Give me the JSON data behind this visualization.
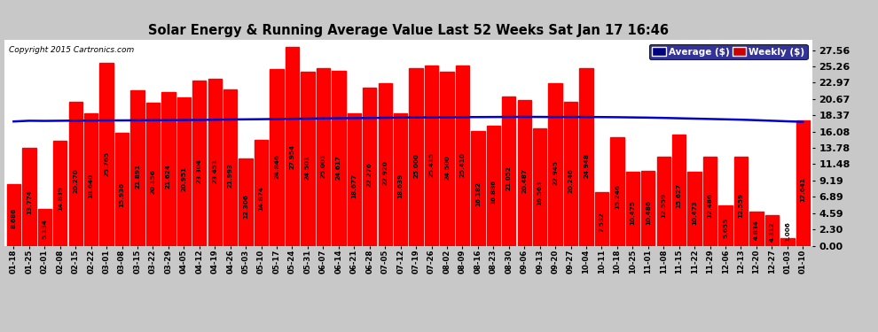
{
  "title": "Solar Energy & Running Average Value Last 52 Weeks Sat Jan 17 16:46",
  "copyright": "Copyright 2015 Cartronics.com",
  "bar_color": "#ff0000",
  "avg_line_color": "#0000cc",
  "background_color": "#c8c8c8",
  "plot_bg_color": "#ffffff",
  "grid_color": "#ffffff",
  "ytick_values": [
    0.0,
    2.3,
    4.59,
    6.89,
    9.19,
    11.48,
    13.78,
    16.08,
    18.37,
    20.67,
    22.97,
    25.26,
    27.56
  ],
  "ylim_max": 29.0,
  "categories": [
    "01-18",
    "01-25",
    "02-01",
    "02-08",
    "02-15",
    "02-22",
    "03-01",
    "03-08",
    "03-15",
    "03-22",
    "03-29",
    "04-05",
    "04-12",
    "04-19",
    "04-26",
    "05-03",
    "05-10",
    "05-17",
    "05-24",
    "05-31",
    "06-07",
    "06-14",
    "06-21",
    "06-28",
    "07-05",
    "07-12",
    "07-19",
    "07-26",
    "08-02",
    "08-09",
    "08-16",
    "08-23",
    "08-30",
    "09-06",
    "09-13",
    "09-20",
    "09-27",
    "10-04",
    "10-11",
    "10-18",
    "10-25",
    "11-01",
    "11-08",
    "11-15",
    "11-22",
    "11-29",
    "12-06",
    "12-13",
    "12-20",
    "12-27",
    "01-03",
    "01-10"
  ],
  "bar_values": [
    8.686,
    13.774,
    5.134,
    14.839,
    20.27,
    18.64,
    25.765,
    15.936,
    21.891,
    20.156,
    21.624,
    20.951,
    23.304,
    23.451,
    21.993,
    12.306,
    14.874,
    24.846,
    27.954,
    24.501,
    25.001,
    24.617,
    18.677,
    22.276,
    22.92,
    18.639,
    25.0,
    25.415,
    24.5,
    25.41,
    16.182,
    16.886,
    21.052,
    20.487,
    16.563,
    22.945,
    20.246,
    24.948,
    7.532,
    15.246,
    10.475,
    10.486,
    12.559,
    15.627,
    10.473,
    12.486,
    5.655,
    12.559,
    4.834,
    4.312,
    1.006,
    17.641
  ],
  "avg_values": [
    17.5,
    17.6,
    17.58,
    17.6,
    17.62,
    17.63,
    17.65,
    17.65,
    17.66,
    17.67,
    17.68,
    17.7,
    17.72,
    17.75,
    17.78,
    17.8,
    17.82,
    17.85,
    17.88,
    17.9,
    17.93,
    17.96,
    17.98,
    18.0,
    18.02,
    18.05,
    18.07,
    18.08,
    18.1,
    18.11,
    18.12,
    18.13,
    18.14,
    18.15,
    18.14,
    18.13,
    18.14,
    18.13,
    18.12,
    18.1,
    18.07,
    18.04,
    18.0,
    17.95,
    17.9,
    17.85,
    17.8,
    17.75,
    17.68,
    17.6,
    17.52,
    17.45
  ],
  "legend_avg_bg": "#000080",
  "legend_weekly_bg": "#cc0000"
}
